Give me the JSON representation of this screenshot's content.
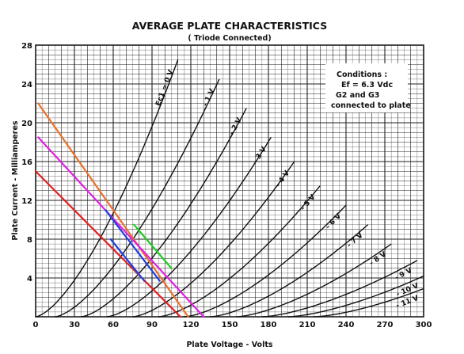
{
  "chart_data": {
    "type": "line",
    "title": "AVERAGE PLATE CHARACTERISTICS",
    "subtitle": "( Triode Connected)",
    "xlabel": "Plate Voltage - Volts",
    "ylabel": "Plate Current - Milliamperes",
    "xlim": [
      0,
      300
    ],
    "ylim": [
      0,
      28
    ],
    "x_ticks": [
      "0",
      "30",
      "60",
      "90",
      "120",
      "150",
      "180",
      "210",
      "240",
      "270",
      "300"
    ],
    "y_ticks": [
      "4",
      "8",
      "12",
      "16",
      "20",
      "24",
      "28"
    ],
    "grid": true,
    "conditions": {
      "heading": "Conditions :",
      "lines": [
        "Ef = 6.3 Vdc",
        "G2 and G3",
        "connected to plate"
      ]
    },
    "curves": [
      {
        "name": "Ec1 = 0 V",
        "grid_bias_v": 0,
        "x_end": 110,
        "y_end": 26.5
      },
      {
        "name": "- 1 V",
        "grid_bias_v": -1,
        "x_start": 15,
        "x_end": 142,
        "y_end": 24.5
      },
      {
        "name": "- 2 V",
        "grid_bias_v": -2,
        "x_start": 35,
        "x_end": 163,
        "y_end": 21.5
      },
      {
        "name": "- 3 V",
        "grid_bias_v": -3,
        "x_start": 55,
        "x_end": 182,
        "y_end": 18.5
      },
      {
        "name": "- 4 V",
        "grid_bias_v": -4,
        "x_start": 75,
        "x_end": 200,
        "y_end": 16.0
      },
      {
        "name": "- 5 V",
        "grid_bias_v": -5,
        "x_start": 95,
        "x_end": 220,
        "y_end": 13.5
      },
      {
        "name": "- 6 V",
        "grid_bias_v": -6,
        "x_start": 115,
        "x_end": 240,
        "y_end": 11.5
      },
      {
        "name": "- 7 V",
        "grid_bias_v": -7,
        "x_start": 135,
        "x_end": 257,
        "y_end": 9.5
      },
      {
        "name": "- 8 V",
        "grid_bias_v": -8,
        "x_start": 155,
        "x_end": 275,
        "y_end": 7.5
      },
      {
        "name": "- 9 V",
        "grid_bias_v": -9,
        "x_start": 175,
        "x_end": 295,
        "y_end": 5.8
      },
      {
        "name": "- 10 V",
        "grid_bias_v": -10,
        "x_start": 195,
        "x_end": 300,
        "y_end": 4.2
      },
      {
        "name": "- 11 V",
        "grid_bias_v": -11,
        "x_start": 215,
        "x_end": 300,
        "y_end": 2.9
      }
    ],
    "load_lines": [
      {
        "color": "#e02020",
        "points": [
          [
            0,
            15
          ],
          [
            112,
            0
          ]
        ]
      },
      {
        "color": "#e8722a",
        "points": [
          [
            2,
            22
          ],
          [
            118,
            0
          ]
        ]
      },
      {
        "color": "#e020e0",
        "points": [
          [
            2,
            18.5
          ],
          [
            130,
            0
          ]
        ]
      },
      {
        "color": "#2040e0",
        "points": [
          [
            54,
            11
          ],
          [
            96,
            3.7
          ]
        ]
      },
      {
        "color": "#2040e0",
        "points": [
          [
            58,
            8
          ],
          [
            84,
            3.7
          ]
        ]
      },
      {
        "color": "#22cc22",
        "points": [
          [
            76,
            9.5
          ],
          [
            105,
            5.0
          ]
        ]
      }
    ]
  }
}
